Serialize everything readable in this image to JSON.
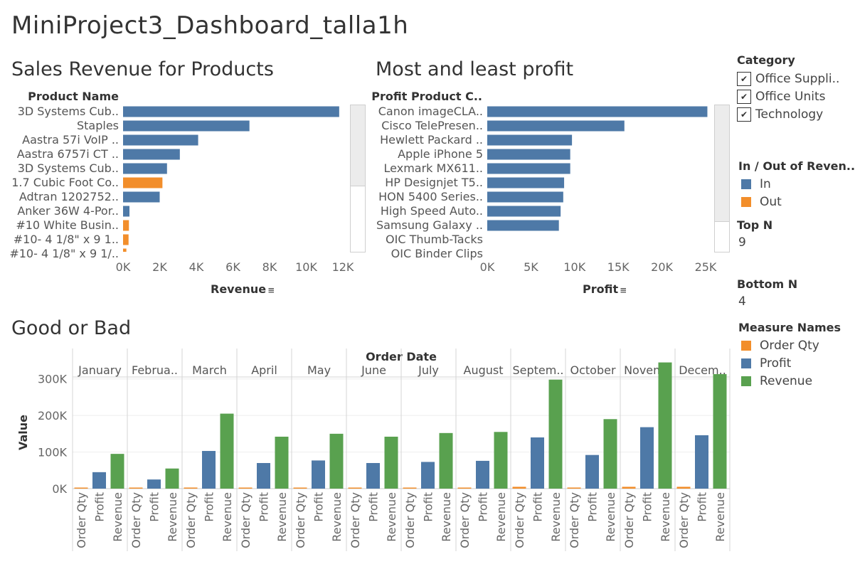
{
  "dashboard": {
    "title": "MiniProject3_Dashboard_talla1h"
  },
  "colors": {
    "in": "#4e79a7",
    "out": "#f28e2b",
    "order_qty": "#f28e2b",
    "profit": "#4e79a7",
    "revenue": "#59a14f"
  },
  "sales_chart": {
    "title": "Sales Revenue for Products",
    "row_header": "Product Name",
    "x_axis_title": "Revenue",
    "sort_icon": "sort-descending-icon"
  },
  "profit_chart": {
    "title": "Most and least profit",
    "row_header": "Profit Product C..",
    "x_axis_title": "Profit",
    "sort_icon": "sort-descending-icon"
  },
  "good_bad_chart": {
    "title": "Good or Bad",
    "column_header": "Order Date",
    "y_axis_title": "Value"
  },
  "filters": {
    "category": {
      "title": "Category",
      "options": [
        {
          "label": "Office Suppli..",
          "checked": true
        },
        {
          "label": "Office Units",
          "checked": true
        },
        {
          "label": "Technology",
          "checked": true
        }
      ]
    },
    "in_out": {
      "title": "In / Out of Reven..",
      "items": [
        {
          "label": "In",
          "color": "#4e79a7"
        },
        {
          "label": "Out",
          "color": "#f28e2b"
        }
      ]
    },
    "top_n": {
      "title": "Top N",
      "value": "9"
    },
    "bottom_n": {
      "title": "Bottom N",
      "value": "4"
    },
    "measure_names": {
      "title": "Measure Names",
      "items": [
        {
          "label": "Order Qty",
          "color": "#f28e2b"
        },
        {
          "label": "Profit",
          "color": "#4e79a7"
        },
        {
          "label": "Revenue",
          "color": "#59a14f"
        }
      ]
    }
  },
  "chart_data": [
    {
      "type": "bar",
      "orientation": "horizontal",
      "title": "Sales Revenue for Products",
      "xlabel": "Revenue",
      "ylabel": "Product Name",
      "xlim": [
        0,
        12000
      ],
      "x_ticks": [
        "0K",
        "2K",
        "4K",
        "6K",
        "8K",
        "10K",
        "12K"
      ],
      "legend": "In / Out of Reven..",
      "categories": [
        "3D Systems Cub..",
        "Staples",
        "Aastra 57i VoIP ..",
        "Aastra 6757i CT ..",
        "3D Systems Cub..",
        "1.7 Cubic Foot Co..",
        "Adtran 1202752..",
        "Anker 36W 4-Por..",
        "#10 White Busin..",
        "#10- 4 1/8\" x 9 1..",
        "#10- 4 1/8\" x 9 1/.."
      ],
      "values": [
        11800,
        6900,
        4100,
        3100,
        2400,
        2150,
        2000,
        350,
        320,
        300,
        180
      ],
      "group": [
        "In",
        "In",
        "In",
        "In",
        "In",
        "Out",
        "In",
        "In",
        "Out",
        "Out",
        "Out"
      ]
    },
    {
      "type": "bar",
      "orientation": "horizontal",
      "title": "Most and least profit",
      "xlabel": "Profit",
      "ylabel": "Profit Product C..",
      "xlim": [
        0,
        25000
      ],
      "x_ticks": [
        "0K",
        "5K",
        "10K",
        "15K",
        "20K",
        "25K"
      ],
      "categories": [
        "Canon imageCLA..",
        "Cisco TelePresen..",
        "Hewlett Packard ..",
        "Apple iPhone 5",
        "Lexmark MX611..",
        "HP Designjet T5..",
        "HON 5400 Series..",
        "High Speed Auto..",
        "Samsung Galaxy ..",
        "OIC Thumb-Tacks",
        "OIC Binder Clips"
      ],
      "values": [
        25200,
        15700,
        9700,
        9500,
        9500,
        8800,
        8700,
        8400,
        8200,
        0,
        0
      ]
    },
    {
      "type": "bar",
      "title": "Good or Bad",
      "xlabel": "Order Date",
      "ylabel": "Value",
      "ylim": [
        0,
        350000
      ],
      "y_ticks": [
        "0K",
        "100K",
        "200K",
        "300K"
      ],
      "categories": [
        "January",
        "Februa..",
        "March",
        "April",
        "May",
        "June",
        "July",
        "August",
        "Septem..",
        "October",
        "Novem..",
        "Decem.."
      ],
      "measures": [
        "Order Qty",
        "Profit",
        "Revenue"
      ],
      "series": [
        {
          "name": "Order Qty",
          "values": [
            2000,
            1000,
            3000,
            2500,
            2500,
            2500,
            2500,
            2500,
            5000,
            3000,
            5000,
            5000
          ]
        },
        {
          "name": "Profit",
          "values": [
            45000,
            25000,
            103000,
            70000,
            77000,
            70000,
            73000,
            76000,
            140000,
            92000,
            168000,
            146000
          ]
        },
        {
          "name": "Revenue",
          "values": [
            95000,
            55000,
            205000,
            142000,
            150000,
            142000,
            152000,
            155000,
            298000,
            190000,
            345000,
            313000
          ]
        }
      ]
    }
  ]
}
